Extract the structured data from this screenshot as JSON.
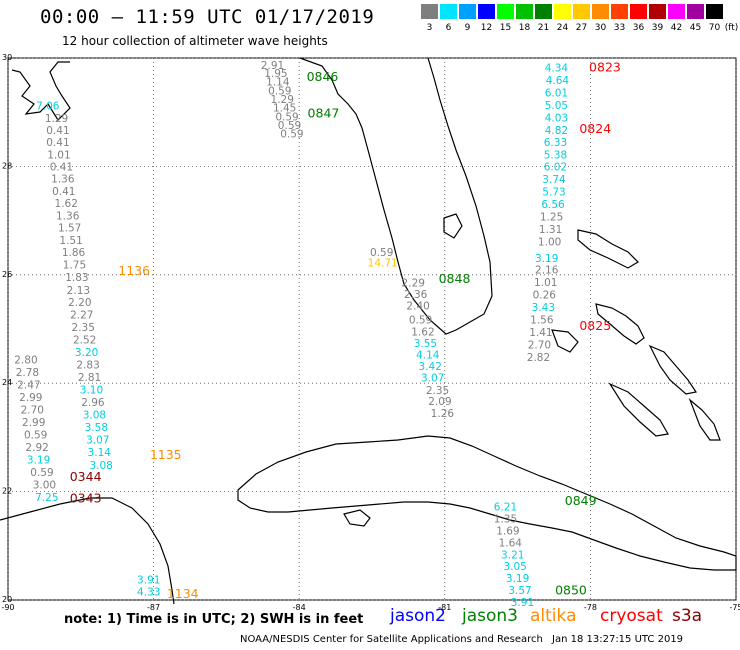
{
  "header": {
    "title": "00:00 – 11:59 UTC 01/17/2019",
    "subtitle": "12 hour collection of altimeter wave heights"
  },
  "scale": {
    "unit": "(ft)",
    "bins": [
      {
        "label": "3",
        "color": "#7f7f7f"
      },
      {
        "label": "6",
        "color": "#00e5ff"
      },
      {
        "label": "9",
        "color": "#00a0ff"
      },
      {
        "label": "12",
        "color": "#0000ff"
      },
      {
        "label": "15",
        "color": "#00ff00"
      },
      {
        "label": "18",
        "color": "#00c000"
      },
      {
        "label": "21",
        "color": "#008000"
      },
      {
        "label": "24",
        "color": "#ffff00"
      },
      {
        "label": "27",
        "color": "#ffc800"
      },
      {
        "label": "30",
        "color": "#ff8c00"
      },
      {
        "label": "33",
        "color": "#ff4000"
      },
      {
        "label": "36",
        "color": "#ff0000"
      },
      {
        "label": "39",
        "color": "#b00000"
      },
      {
        "label": "42",
        "color": "#ff00ff"
      },
      {
        "label": "45",
        "color": "#a000a0"
      },
      {
        "label": "70",
        "color": "#000000"
      }
    ]
  },
  "map": {
    "lon_range": [
      -90,
      -75
    ],
    "lat_range": [
      20,
      30
    ],
    "lon_ticks": [
      "-90",
      "-87",
      "-84",
      "-81",
      "-78",
      "-75"
    ],
    "lat_ticks": [
      "20",
      "22",
      "24",
      "26",
      "28",
      "30"
    ],
    "colors": {
      "jason2": "#0000ff",
      "jason3": "#008000",
      "altika": "#ff8c00",
      "cryosat": "#ff0000",
      "s3a": "#8b0000",
      "low": "#7f7f7f",
      "mid": "#00cfe0",
      "yellow": "#ffc800"
    },
    "tracks": [
      {
        "lon": -89.18,
        "lat": 29.05,
        "v": "7.06",
        "c": "mid"
      },
      {
        "lon": -89.0,
        "lat": 28.82,
        "v": "1.29",
        "c": "low"
      },
      {
        "lon": -88.97,
        "lat": 28.6,
        "v": "0.41",
        "c": "low"
      },
      {
        "lon": -88.97,
        "lat": 28.38,
        "v": "0.41",
        "c": "low"
      },
      {
        "lon": -88.95,
        "lat": 28.15,
        "v": "1.01",
        "c": "low"
      },
      {
        "lon": -88.9,
        "lat": 27.92,
        "v": "0.41",
        "c": "low"
      },
      {
        "lon": -88.87,
        "lat": 27.7,
        "v": "1.36",
        "c": "low"
      },
      {
        "lon": -88.85,
        "lat": 27.47,
        "v": "0.41",
        "c": "low"
      },
      {
        "lon": -88.8,
        "lat": 27.25,
        "v": "1.62",
        "c": "low"
      },
      {
        "lon": -88.77,
        "lat": 27.02,
        "v": "1.36",
        "c": "low"
      },
      {
        "lon": -88.73,
        "lat": 26.8,
        "v": "1.57",
        "c": "low"
      },
      {
        "lon": -88.7,
        "lat": 26.57,
        "v": "1.51",
        "c": "low"
      },
      {
        "lon": -88.65,
        "lat": 26.35,
        "v": "1.86",
        "c": "low"
      },
      {
        "lon": -88.63,
        "lat": 26.12,
        "v": "1.75",
        "c": "low"
      },
      {
        "lon": -88.58,
        "lat": 25.89,
        "v": "1.83",
        "c": "low"
      },
      {
        "lon": -88.55,
        "lat": 25.65,
        "v": "2.13",
        "c": "low"
      },
      {
        "lon": -88.52,
        "lat": 25.42,
        "v": "2.20",
        "c": "low"
      },
      {
        "lon": -88.48,
        "lat": 25.19,
        "v": "2.27",
        "c": "low"
      },
      {
        "lon": -88.45,
        "lat": 24.96,
        "v": "2.35",
        "c": "low"
      },
      {
        "lon": -88.42,
        "lat": 24.73,
        "v": "2.52",
        "c": "low"
      },
      {
        "lon": -88.38,
        "lat": 24.5,
        "v": "3.20",
        "c": "mid"
      },
      {
        "lon": -88.35,
        "lat": 24.27,
        "v": "2.83",
        "c": "low"
      },
      {
        "lon": -88.32,
        "lat": 24.04,
        "v": "2.81",
        "c": "low"
      },
      {
        "lon": -88.28,
        "lat": 23.81,
        "v": "3.10",
        "c": "mid"
      },
      {
        "lon": -88.25,
        "lat": 23.58,
        "v": "2.96",
        "c": "low"
      },
      {
        "lon": -88.22,
        "lat": 23.35,
        "v": "3.08",
        "c": "mid"
      },
      {
        "lon": -88.18,
        "lat": 23.12,
        "v": "3.58",
        "c": "mid"
      },
      {
        "lon": -88.15,
        "lat": 22.89,
        "v": "3.07",
        "c": "mid"
      },
      {
        "lon": -88.12,
        "lat": 22.66,
        "v": "3.14",
        "c": "mid"
      },
      {
        "lon": -88.08,
        "lat": 22.42,
        "v": "3.08",
        "c": "mid"
      },
      {
        "lon": -89.63,
        "lat": 24.36,
        "v": "2.80",
        "c": "low"
      },
      {
        "lon": -89.6,
        "lat": 24.13,
        "v": "2.78",
        "c": "low"
      },
      {
        "lon": -89.57,
        "lat": 23.9,
        "v": "2.47",
        "c": "low"
      },
      {
        "lon": -89.53,
        "lat": 23.67,
        "v": "2.99",
        "c": "low"
      },
      {
        "lon": -89.5,
        "lat": 23.44,
        "v": "2.70",
        "c": "low"
      },
      {
        "lon": -89.47,
        "lat": 23.21,
        "v": "2.99",
        "c": "low"
      },
      {
        "lon": -89.43,
        "lat": 22.98,
        "v": "0.59",
        "c": "low"
      },
      {
        "lon": -89.4,
        "lat": 22.75,
        "v": "2.92",
        "c": "low"
      },
      {
        "lon": -89.37,
        "lat": 22.52,
        "v": "3.19",
        "c": "mid"
      },
      {
        "lon": -89.3,
        "lat": 22.29,
        "v": "0.59",
        "c": "low"
      },
      {
        "lon": -89.25,
        "lat": 22.06,
        "v": "3.00",
        "c": "low"
      },
      {
        "lon": -89.2,
        "lat": 21.83,
        "v": "7.25",
        "c": "mid"
      },
      {
        "lon": -87.1,
        "lat": 20.3,
        "v": "3.91",
        "c": "mid"
      },
      {
        "lon": -87.1,
        "lat": 20.08,
        "v": "4.33",
        "c": "mid"
      },
      {
        "lon": -84.55,
        "lat": 29.8,
        "v": "2.91",
        "c": "low"
      },
      {
        "lon": -84.48,
        "lat": 29.65,
        "v": "1.95",
        "c": "low"
      },
      {
        "lon": -84.44,
        "lat": 29.49,
        "v": "1.14",
        "c": "low"
      },
      {
        "lon": -84.4,
        "lat": 29.33,
        "v": "0.59",
        "c": "low"
      },
      {
        "lon": -84.35,
        "lat": 29.17,
        "v": "1.29",
        "c": "low"
      },
      {
        "lon": -84.3,
        "lat": 29.01,
        "v": "1.45",
        "c": "low"
      },
      {
        "lon": -84.25,
        "lat": 28.85,
        "v": "0.59",
        "c": "low"
      },
      {
        "lon": -84.2,
        "lat": 28.69,
        "v": "0.59",
        "c": "low"
      },
      {
        "lon": -84.15,
        "lat": 28.53,
        "v": "0.59",
        "c": "low"
      },
      {
        "lon": -82.3,
        "lat": 26.35,
        "v": "0.59",
        "c": "low"
      },
      {
        "lon": -82.28,
        "lat": 26.15,
        "v": "14.71",
        "c": "yellow"
      },
      {
        "lon": -81.65,
        "lat": 25.78,
        "v": "2.29",
        "c": "low"
      },
      {
        "lon": -81.6,
        "lat": 25.57,
        "v": "2.36",
        "c": "low"
      },
      {
        "lon": -81.55,
        "lat": 25.36,
        "v": "2.40",
        "c": "low"
      },
      {
        "lon": -81.5,
        "lat": 25.1,
        "v": "0.59",
        "c": "low"
      },
      {
        "lon": -81.45,
        "lat": 24.88,
        "v": "1.62",
        "c": "low"
      },
      {
        "lon": -81.4,
        "lat": 24.67,
        "v": "3.55",
        "c": "mid"
      },
      {
        "lon": -81.35,
        "lat": 24.46,
        "v": "4.14",
        "c": "mid"
      },
      {
        "lon": -81.3,
        "lat": 24.24,
        "v": "3.42",
        "c": "mid"
      },
      {
        "lon": -81.25,
        "lat": 24.03,
        "v": "3.07",
        "c": "mid"
      },
      {
        "lon": -81.15,
        "lat": 23.8,
        "v": "2.35",
        "c": "low"
      },
      {
        "lon": -81.1,
        "lat": 23.6,
        "v": "2.09",
        "c": "low"
      },
      {
        "lon": -81.05,
        "lat": 23.38,
        "v": "1.26",
        "c": "low"
      },
      {
        "lon": -78.7,
        "lat": 29.75,
        "v": "4.34",
        "c": "mid"
      },
      {
        "lon": -78.68,
        "lat": 29.52,
        "v": "4.64",
        "c": "mid"
      },
      {
        "lon": -78.7,
        "lat": 29.29,
        "v": "6.01",
        "c": "mid"
      },
      {
        "lon": -78.7,
        "lat": 29.06,
        "v": "5.05",
        "c": "mid"
      },
      {
        "lon": -78.7,
        "lat": 28.83,
        "v": "4.03",
        "c": "mid"
      },
      {
        "lon": -78.7,
        "lat": 28.6,
        "v": "4.82",
        "c": "mid"
      },
      {
        "lon": -78.72,
        "lat": 28.38,
        "v": "6.33",
        "c": "mid"
      },
      {
        "lon": -78.72,
        "lat": 28.15,
        "v": "5.38",
        "c": "mid"
      },
      {
        "lon": -78.72,
        "lat": 27.92,
        "v": "6.02",
        "c": "mid"
      },
      {
        "lon": -78.75,
        "lat": 27.69,
        "v": "3.74",
        "c": "mid"
      },
      {
        "lon": -78.75,
        "lat": 27.46,
        "v": "5.73",
        "c": "mid"
      },
      {
        "lon": -78.77,
        "lat": 27.23,
        "v": "6.56",
        "c": "mid"
      },
      {
        "lon": -78.8,
        "lat": 27.0,
        "v": "1.25",
        "c": "low"
      },
      {
        "lon": -78.82,
        "lat": 26.77,
        "v": "1.31",
        "c": "low"
      },
      {
        "lon": -78.84,
        "lat": 26.54,
        "v": "1.00",
        "c": "low"
      },
      {
        "lon": -78.9,
        "lat": 26.24,
        "v": "3.19",
        "c": "mid"
      },
      {
        "lon": -78.9,
        "lat": 26.02,
        "v": "2.16",
        "c": "low"
      },
      {
        "lon": -78.92,
        "lat": 25.79,
        "v": "1.01",
        "c": "low"
      },
      {
        "lon": -78.95,
        "lat": 25.56,
        "v": "0.26",
        "c": "low"
      },
      {
        "lon": -78.97,
        "lat": 25.33,
        "v": "3.43",
        "c": "mid"
      },
      {
        "lon": -79.0,
        "lat": 25.1,
        "v": "1.56",
        "c": "low"
      },
      {
        "lon": -79.02,
        "lat": 24.87,
        "v": "1.41",
        "c": "low"
      },
      {
        "lon": -79.05,
        "lat": 24.64,
        "v": "2.70",
        "c": "low"
      },
      {
        "lon": -79.07,
        "lat": 24.41,
        "v": "2.82",
        "c": "low"
      },
      {
        "lon": -79.75,
        "lat": 21.65,
        "v": "6.21",
        "c": "mid"
      },
      {
        "lon": -79.75,
        "lat": 21.43,
        "v": "1.35",
        "c": "low"
      },
      {
        "lon": -79.7,
        "lat": 21.21,
        "v": "1.69",
        "c": "low"
      },
      {
        "lon": -79.65,
        "lat": 20.99,
        "v": "1.64",
        "c": "low"
      },
      {
        "lon": -79.6,
        "lat": 20.77,
        "v": "3.21",
        "c": "mid"
      },
      {
        "lon": -79.55,
        "lat": 20.55,
        "v": "3.05",
        "c": "mid"
      },
      {
        "lon": -79.5,
        "lat": 20.33,
        "v": "3.19",
        "c": "mid"
      },
      {
        "lon": -79.45,
        "lat": 20.11,
        "v": "3.57",
        "c": "mid"
      },
      {
        "lon": -79.4,
        "lat": 19.89,
        "v": "3.91",
        "c": "mid"
      }
    ],
    "times": [
      {
        "lon": -83.52,
        "lat": 29.58,
        "t": "0846",
        "sat": "jason3"
      },
      {
        "lon": -83.5,
        "lat": 28.9,
        "t": "0847",
        "sat": "jason3"
      },
      {
        "lon": -80.8,
        "lat": 25.85,
        "t": "0848",
        "sat": "jason3"
      },
      {
        "lon": -78.2,
        "lat": 21.75,
        "t": "0849",
        "sat": "jason3"
      },
      {
        "lon": -78.4,
        "lat": 20.1,
        "t": "0850",
        "sat": "jason3"
      },
      {
        "lon": -87.4,
        "lat": 26.0,
        "t": "1136",
        "sat": "altika"
      },
      {
        "lon": -86.75,
        "lat": 22.6,
        "t": "1135",
        "sat": "altika"
      },
      {
        "lon": -86.4,
        "lat": 20.04,
        "t": "1134",
        "sat": "altika"
      },
      {
        "lon": -77.7,
        "lat": 29.75,
        "t": "0823",
        "sat": "cryosat"
      },
      {
        "lon": -77.9,
        "lat": 28.62,
        "t": "0824",
        "sat": "cryosat"
      },
      {
        "lon": -77.9,
        "lat": 24.98,
        "t": "0825",
        "sat": "cryosat"
      },
      {
        "lon": -88.4,
        "lat": 22.2,
        "t": "0344",
        "sat": "s3a"
      },
      {
        "lon": -88.4,
        "lat": 21.8,
        "t": "0343",
        "sat": "s3a"
      }
    ]
  },
  "footer": {
    "note": "note:  1) Time is in UTC;  2) SWH is in feet",
    "legend": [
      {
        "name": "jason2",
        "key": "jason2"
      },
      {
        "name": "jason3",
        "key": "jason3"
      },
      {
        "name": "altika",
        "key": "altika"
      },
      {
        "name": "cryosat",
        "key": "cryosat"
      },
      {
        "name": "s3a",
        "key": "s3a"
      }
    ],
    "credit": "NOAA/NESDIS Center for Satellite Applications and Research",
    "stamp": "Jan 18 13:27:15 UTC 2019"
  }
}
